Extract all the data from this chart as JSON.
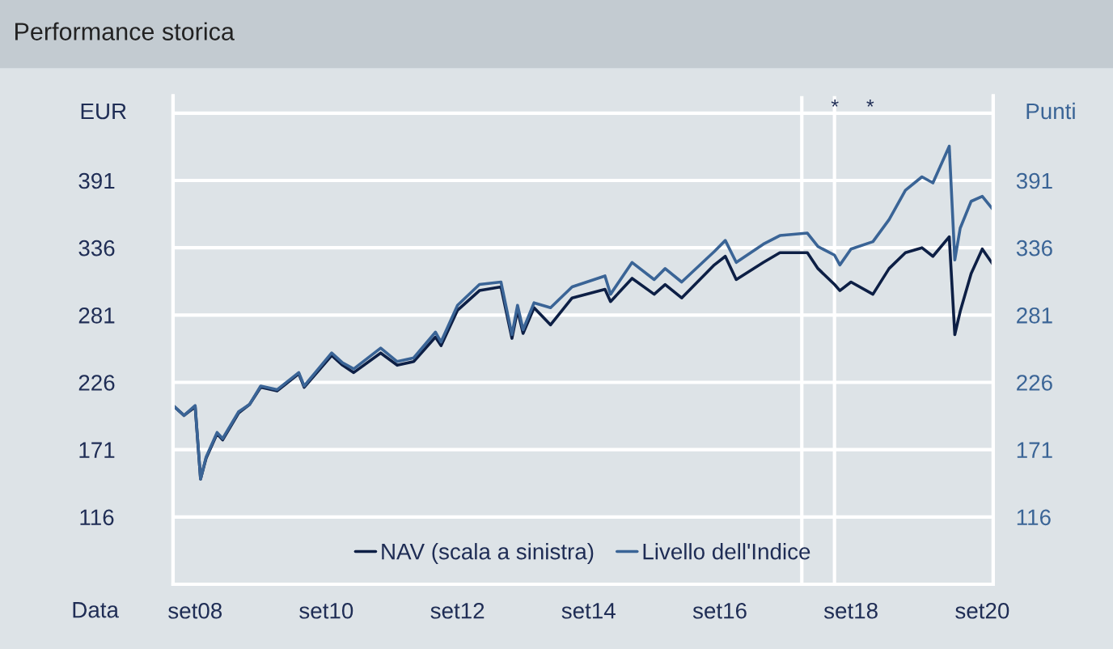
{
  "chart_data": {
    "type": "line",
    "title": "Performance storica",
    "xlabel": "Data",
    "ylabel": "EUR",
    "y2label": "Punti",
    "xlim": [
      "2008-05",
      "2020-11"
    ],
    "xticks": [
      {
        "value": "2008-09",
        "label": "set08"
      },
      {
        "value": "2010-09",
        "label": "set10"
      },
      {
        "value": "2012-09",
        "label": "set12"
      },
      {
        "value": "2014-09",
        "label": "set14"
      },
      {
        "value": "2016-09",
        "label": "set16"
      },
      {
        "value": "2018-09",
        "label": "set18"
      },
      {
        "value": "2020-09",
        "label": "set20"
      }
    ],
    "ylim": [
      61,
      460
    ],
    "yticks": [
      116,
      171,
      226,
      281,
      336,
      391,
      {
        "value": 446,
        "label": null
      }
    ],
    "y2lim": [
      61,
      460
    ],
    "y2ticks": [
      116,
      171,
      226,
      281,
      336,
      391
    ],
    "grid": "y",
    "legend": "bottom",
    "line_style": "solid",
    "marker": "none",
    "ref_lines": [
      {
        "axis": "x",
        "value": "2017-12",
        "label": null,
        "color": "#ffffff"
      },
      {
        "axis": "x",
        "value": "2018-06",
        "label": null,
        "color": "#ffffff"
      }
    ],
    "annotations": [
      "*",
      "*"
    ],
    "series": [
      {
        "name": "NAV (scala a sinistra)",
        "color": "#0d1f45",
        "axis": "y",
        "x": [
          "2008-05",
          "2008-07",
          "2008-09",
          "2008-10",
          "2008-11",
          "2009-01",
          "2009-02",
          "2009-05",
          "2009-07",
          "2009-09",
          "2009-12",
          "2010-04",
          "2010-05",
          "2010-10",
          "2010-12",
          "2011-02",
          "2011-07",
          "2011-10",
          "2012-01",
          "2012-05",
          "2012-06",
          "2012-09",
          "2013-01",
          "2013-05",
          "2013-07",
          "2013-08",
          "2013-09",
          "2013-11",
          "2014-02",
          "2014-06",
          "2014-12",
          "2015-01",
          "2015-05",
          "2015-09",
          "2015-11",
          "2016-02",
          "2016-08",
          "2016-10",
          "2016-12",
          "2017-05",
          "2017-08",
          "2018-01",
          "2018-03",
          "2018-06",
          "2018-07",
          "2018-09",
          "2019-01",
          "2019-04",
          "2019-07",
          "2019-10",
          "2019-12",
          "2020-03",
          "2020-04",
          "2020-05",
          "2020-07",
          "2020-09",
          "2020-11"
        ],
        "values": [
          207,
          199,
          206,
          147,
          164,
          184,
          179,
          201,
          208,
          222,
          219,
          233,
          222,
          248,
          240,
          234,
          250,
          240,
          243,
          263,
          256,
          285,
          301,
          304,
          262,
          285,
          266,
          287,
          273,
          295,
          302,
          292,
          311,
          298,
          306,
          295,
          322,
          329,
          310,
          324,
          332,
          332,
          319,
          306,
          301,
          308,
          298,
          319,
          332,
          336,
          329,
          345,
          265,
          284,
          315,
          335,
          322
        ]
      },
      {
        "name": "Livello dell'Indice",
        "color": "#3a6496",
        "axis": "y2",
        "x": [
          "2008-05",
          "2008-07",
          "2008-09",
          "2008-10",
          "2008-11",
          "2009-01",
          "2009-02",
          "2009-05",
          "2009-07",
          "2009-09",
          "2009-12",
          "2010-04",
          "2010-05",
          "2010-10",
          "2010-12",
          "2011-02",
          "2011-07",
          "2011-10",
          "2012-01",
          "2012-05",
          "2012-06",
          "2012-09",
          "2013-01",
          "2013-05",
          "2013-07",
          "2013-08",
          "2013-09",
          "2013-11",
          "2014-02",
          "2014-06",
          "2014-12",
          "2015-01",
          "2015-05",
          "2015-09",
          "2015-11",
          "2016-02",
          "2016-08",
          "2016-10",
          "2016-12",
          "2017-05",
          "2017-08",
          "2018-01",
          "2018-03",
          "2018-06",
          "2018-07",
          "2018-09",
          "2019-01",
          "2019-04",
          "2019-07",
          "2019-10",
          "2019-12",
          "2020-03",
          "2020-04",
          "2020-05",
          "2020-07",
          "2020-09",
          "2020-11"
        ],
        "values": [
          207,
          199,
          207,
          147,
          165,
          185,
          180,
          202,
          208,
          223,
          220,
          234,
          223,
          250,
          242,
          237,
          254,
          243,
          246,
          267,
          259,
          289,
          306,
          308,
          265,
          289,
          269,
          291,
          287,
          304,
          313,
          298,
          324,
          310,
          319,
          308,
          333,
          342,
          324,
          339,
          346,
          348,
          337,
          330,
          322,
          335,
          341,
          359,
          383,
          394,
          389,
          419,
          326,
          352,
          374,
          378,
          367
        ]
      }
    ]
  }
}
